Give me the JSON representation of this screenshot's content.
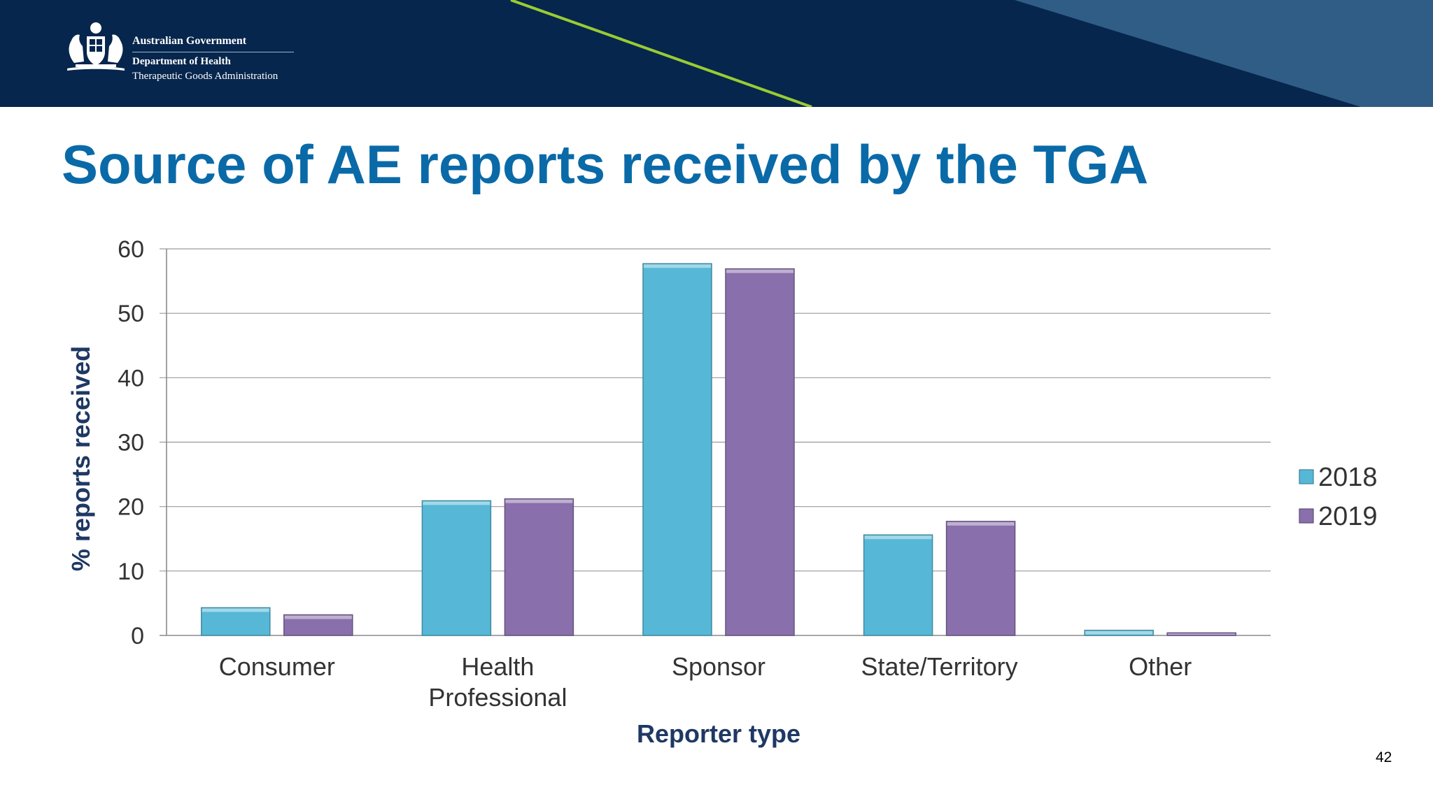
{
  "header": {
    "gov_name": "Australian Government",
    "department": "Department of Health",
    "agency": "Therapeutic Goods Administration",
    "colors": {
      "navy": "#06264d",
      "stripe": "#99cc33",
      "slate": "#2f5d85"
    }
  },
  "slide": {
    "title": "Source of AE reports received by the TGA",
    "page_number": "42"
  },
  "chart_data": {
    "type": "bar",
    "xlabel": "Reporter type",
    "ylabel": "% reports received",
    "categories": [
      "Consumer",
      "Health Professional",
      "Sponsor",
      "State/Territory",
      "Other"
    ],
    "category_lines": [
      [
        "Consumer"
      ],
      [
        "Health",
        "Professional"
      ],
      [
        "Sponsor"
      ],
      [
        "State/Territory"
      ],
      [
        "Other"
      ]
    ],
    "series": [
      {
        "name": "2018",
        "values": [
          4.3,
          20.9,
          57.7,
          15.6,
          0.8
        ],
        "color": "#56b8d6"
      },
      {
        "name": "2019",
        "values": [
          3.2,
          21.2,
          56.9,
          17.7,
          0.4
        ],
        "color": "#896fab"
      }
    ],
    "ylim": [
      0,
      60
    ],
    "yticks": [
      0,
      10,
      20,
      30,
      40,
      50,
      60
    ],
    "grid": true,
    "legend_position": "right"
  }
}
